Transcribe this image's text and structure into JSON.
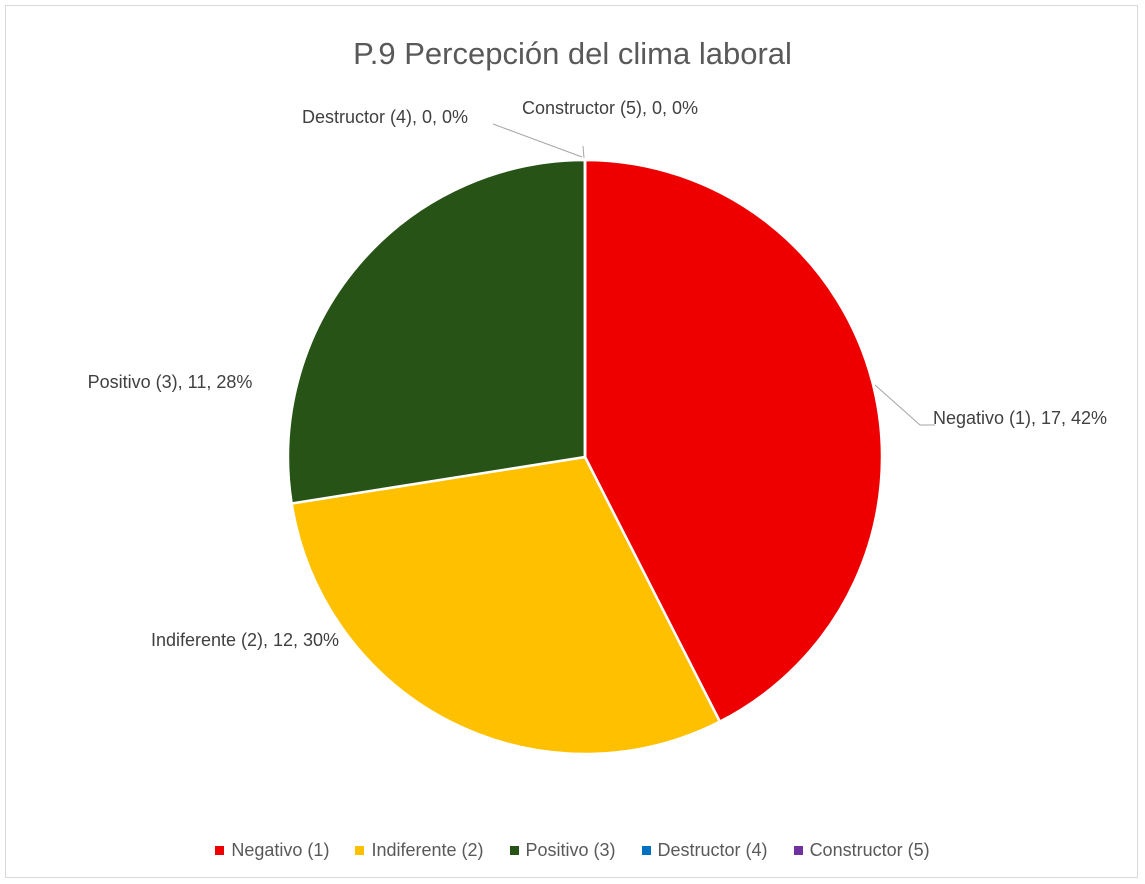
{
  "chart_data": {
    "type": "pie",
    "title": "P.9 Percepción del clima laboral",
    "categories": [
      "Negativo (1)",
      "Indiferente (2)",
      "Positivo (3)",
      "Destructor (4)",
      "Constructor (5)"
    ],
    "values": [
      17,
      12,
      11,
      0,
      0
    ],
    "value_labels": [
      "Negativo (1), 17, 42%",
      "Indiferente (2), 12, 30%",
      "Positivo (3), 11, 28%",
      "Destructor (4), 0, 0%",
      "Constructor (5), 0, 0%"
    ],
    "colors": [
      "#ee0000",
      "#ffc000",
      "#275317",
      "#0070c0",
      "#7030a0"
    ],
    "legend": "bottom"
  }
}
